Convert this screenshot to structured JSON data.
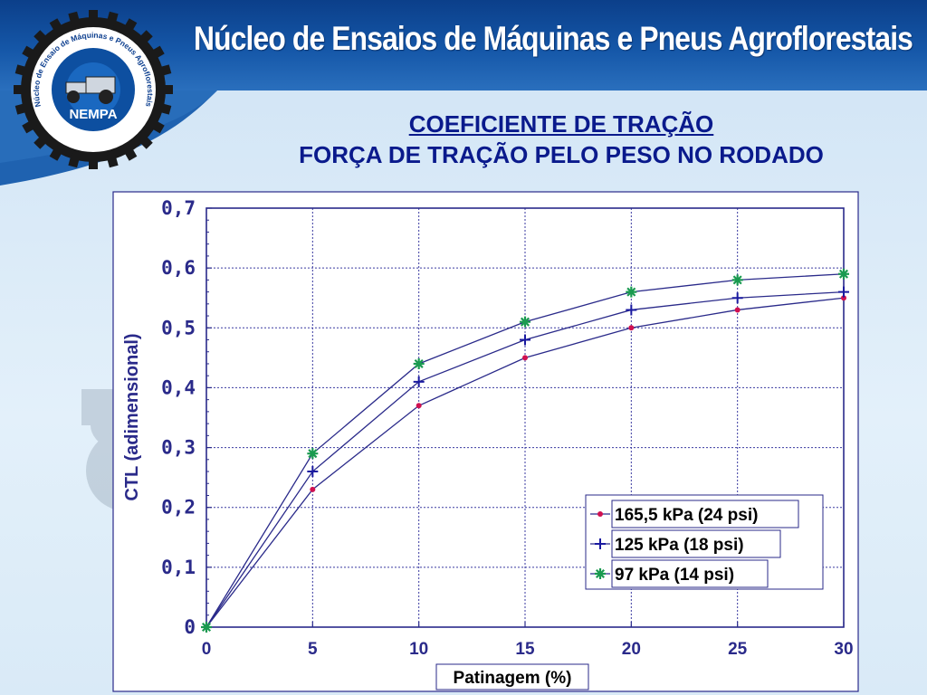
{
  "header": {
    "title": "Núcleo de Ensaios de Máquinas e Pneus Agroflorestais",
    "logo_text": "NEMPA",
    "logo_ring_text": "Núcleo de Ensaio de Máquinas e Pneus Agroflorestais"
  },
  "slide": {
    "title_line1": "COEFICIENTE DE TRAÇÃO",
    "title_line2": "FORÇA DE TRAÇÃO PELO PESO NO RODADO"
  },
  "colors": {
    "header_blue": "#0b3f8a",
    "title_navy": "#0a1a8c",
    "line_color": "#2a2a8a",
    "series_165": "#d01050",
    "series_125": "#1a1aa0",
    "series_97": "#1a9a50"
  },
  "chart_data": {
    "type": "line",
    "xlabel": "Patinagem (%)",
    "ylabel": "CTL  (adimensional)",
    "xlim": [
      0,
      30
    ],
    "ylim": [
      0,
      0.7
    ],
    "x_ticks": [
      "0",
      "5",
      "10",
      "15",
      "20",
      "25",
      "30"
    ],
    "y_ticks": [
      "0",
      "0,1",
      "0,2",
      "0,3",
      "0,4",
      "0,5",
      "0,6",
      "0,7"
    ],
    "grid": true,
    "legend_position": "bottom-right",
    "x": [
      0,
      5,
      10,
      15,
      20,
      25,
      30
    ],
    "series": [
      {
        "name": "165,5 kPa (24 psi)",
        "marker": "dot",
        "values": [
          0,
          0.23,
          0.37,
          0.45,
          0.5,
          0.53,
          0.55
        ]
      },
      {
        "name": "125 kPa (18 psi)",
        "marker": "plus",
        "values": [
          0,
          0.26,
          0.41,
          0.48,
          0.53,
          0.55,
          0.56
        ]
      },
      {
        "name": "97 kPa (14 psi)",
        "marker": "star",
        "values": [
          0,
          0.29,
          0.44,
          0.51,
          0.56,
          0.58,
          0.59
        ]
      }
    ]
  }
}
